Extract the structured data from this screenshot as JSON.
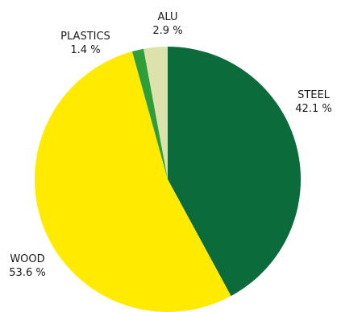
{
  "chart_data": {
    "type": "pie",
    "title": "",
    "start": "top",
    "direction": "clockwise",
    "legend": "none",
    "slices": [
      {
        "name": "STEEL",
        "value": 42.1,
        "label": "42.1 %",
        "color": "#0b6b3a"
      },
      {
        "name": "WOOD",
        "value": 53.6,
        "label": "53.6 %",
        "color": "#ffea00"
      },
      {
        "name": "PLASTICS",
        "value": 1.4,
        "label": "1.4 %",
        "color": "#2e9e3a"
      },
      {
        "name": "ALU",
        "value": 2.9,
        "label": "2.9 %",
        "color": "#dde2ad"
      }
    ]
  }
}
